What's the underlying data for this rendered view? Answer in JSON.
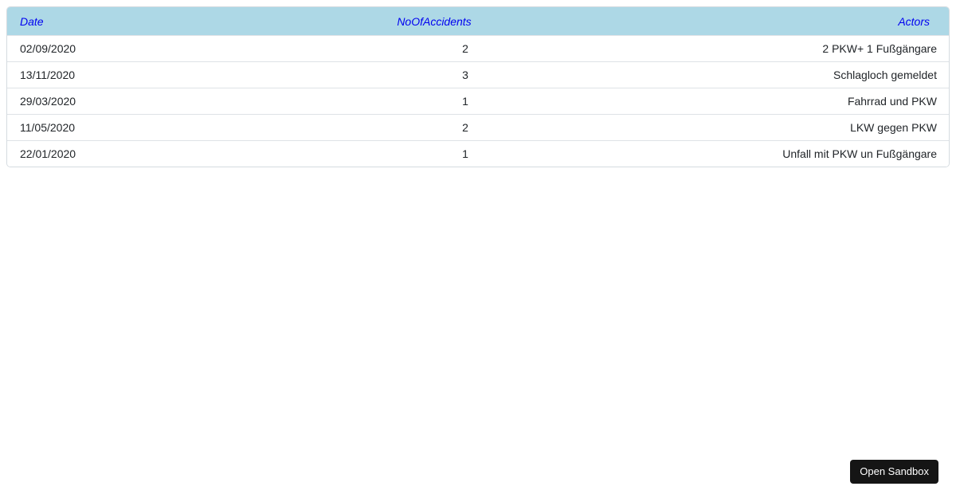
{
  "table": {
    "headers": {
      "date": "Date",
      "no_of_accidents": "NoOfAccidents",
      "actors": "Actors"
    },
    "rows": [
      {
        "date": "02/09/2020",
        "no_of_accidents": "2",
        "actors": "2 PKW+ 1 Fußgängare"
      },
      {
        "date": "13/11/2020",
        "no_of_accidents": "3",
        "actors": "Schlagloch gemeldet"
      },
      {
        "date": "29/03/2020",
        "no_of_accidents": "1",
        "actors": "Fahrrad und PKW"
      },
      {
        "date": "11/05/2020",
        "no_of_accidents": "2",
        "actors": "LKW gegen PKW"
      },
      {
        "date": "22/01/2020",
        "no_of_accidents": "1",
        "actors": "Unfall mit PKW un Fußgängare"
      }
    ]
  },
  "buttons": {
    "open_sandbox": "Open Sandbox"
  },
  "colors": {
    "header_background": "#ADD8E6",
    "header_text": "#0000f0",
    "body_text": "#212529",
    "row_border": "#dee2e6",
    "card_border": "#d5dbe0",
    "button_background": "#151515",
    "button_text": "#ffffff"
  }
}
